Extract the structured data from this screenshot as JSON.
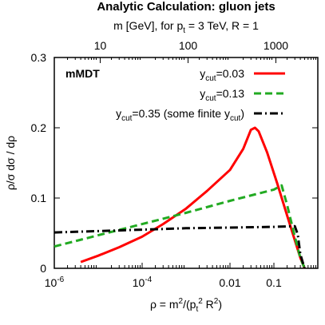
{
  "chart_data": {
    "type": "line",
    "title": "Analytic Calculation: gluon jets",
    "panel_label": "mMDT",
    "x_scale": "log",
    "xlim": [
      1e-06,
      1.0
    ],
    "ylim": [
      0,
      0.3
    ],
    "grid": false,
    "legend_position": "top-right",
    "xlabel": {
      "base": "ρ = m",
      "sup1": "2",
      "mid": "/(p",
      "sub1": "t",
      "sup2": "2",
      "end": " R",
      "sup3": "2",
      "close": ")"
    },
    "ylabel": "ρ/σ dσ / dρ",
    "top_axis": {
      "label": {
        "pre": "m [GeV], for p",
        "sub": "t",
        "post": " = 3 TeV, R = 1"
      },
      "ticks": [
        {
          "label": "10",
          "rho": 1.111e-05
        },
        {
          "label": "100",
          "rho": 0.001111
        },
        {
          "label": "1000",
          "rho": 0.1111
        }
      ]
    },
    "x_ticks": [
      {
        "value": 1e-06,
        "base": "10",
        "exp": "-6"
      },
      {
        "value": 0.0001,
        "base": "10",
        "exp": "-4"
      },
      {
        "value": 0.01,
        "text": "0.01"
      },
      {
        "value": 0.1,
        "text": "0.1"
      }
    ],
    "y_ticks": [
      {
        "value": 0,
        "text": "0"
      },
      {
        "value": 0.1,
        "text": "0.1"
      },
      {
        "value": 0.2,
        "text": "0.2"
      },
      {
        "value": 0.3,
        "text": "0.3"
      }
    ],
    "series": [
      {
        "legend": {
          "pre": "y",
          "sub": "cut",
          "post": "=0.03"
        },
        "color": "#ff0000",
        "style": "solid",
        "points": [
          [
            4e-06,
            0.009
          ],
          [
            1e-05,
            0.018
          ],
          [
            3e-05,
            0.03
          ],
          [
            0.0001,
            0.045
          ],
          [
            0.0003,
            0.063
          ],
          [
            0.001,
            0.085
          ],
          [
            0.003,
            0.11
          ],
          [
            0.01,
            0.14
          ],
          [
            0.02,
            0.17
          ],
          [
            0.03,
            0.197
          ],
          [
            0.037,
            0.2
          ],
          [
            0.045,
            0.195
          ],
          [
            0.07,
            0.165
          ],
          [
            0.12,
            0.12
          ],
          [
            0.2,
            0.075
          ],
          [
            0.3,
            0.04
          ],
          [
            0.4,
            0.015
          ],
          [
            0.5,
            0.0
          ]
        ]
      },
      {
        "legend": {
          "pre": "y",
          "sub": "cut",
          "post": "=0.13"
        },
        "color": "#22aa22",
        "style": "dashed",
        "points": [
          [
            1e-06,
            0.031
          ],
          [
            1e-05,
            0.047
          ],
          [
            0.0001,
            0.063
          ],
          [
            0.001,
            0.079
          ],
          [
            0.01,
            0.096
          ],
          [
            0.1,
            0.112
          ],
          [
            0.15,
            0.118
          ],
          [
            0.2,
            0.09
          ],
          [
            0.3,
            0.045
          ],
          [
            0.4,
            0.015
          ],
          [
            0.5,
            0.0
          ]
        ]
      },
      {
        "legend": {
          "pre": "y",
          "sub": "cut",
          "post": "=0.35 (some finite y",
          "sub2": "cut",
          "post2": ")"
        },
        "color": "#000000",
        "style": "dashdot",
        "points": [
          [
            1e-06,
            0.051
          ],
          [
            1e-05,
            0.053
          ],
          [
            0.0001,
            0.055
          ],
          [
            0.001,
            0.057
          ],
          [
            0.01,
            0.058
          ],
          [
            0.1,
            0.059
          ],
          [
            0.3,
            0.06
          ],
          [
            0.35,
            0.048
          ],
          [
            0.4,
            0.02
          ],
          [
            0.5,
            0.0
          ]
        ]
      }
    ]
  }
}
